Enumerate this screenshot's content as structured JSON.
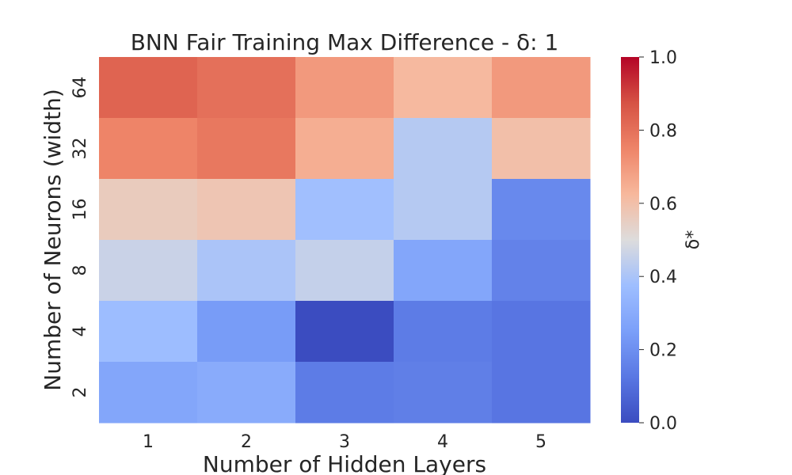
{
  "chart_data": {
    "type": "heatmap",
    "title": "BNN Fair Training Max Difference - δ: 1",
    "xlabel": "Number of Hidden Layers",
    "ylabel": "Number of Neurons (width)",
    "x_categories": [
      "1",
      "2",
      "3",
      "4",
      "5"
    ],
    "y_categories": [
      "64",
      "32",
      "16",
      "8",
      "4",
      "2"
    ],
    "values": [
      [
        0.83,
        0.8,
        0.7,
        0.62,
        0.7
      ],
      [
        0.75,
        0.78,
        0.65,
        0.42,
        0.6
      ],
      [
        0.56,
        0.58,
        0.38,
        0.42,
        0.18
      ],
      [
        0.46,
        0.4,
        0.45,
        0.28,
        0.16
      ],
      [
        0.37,
        0.24,
        0.0,
        0.14,
        0.12
      ],
      [
        0.28,
        0.3,
        0.14,
        0.15,
        0.12
      ]
    ],
    "colorbar": {
      "label": "δ*",
      "min": 0.0,
      "max": 1.0,
      "ticks": [
        "0.0",
        "0.2",
        "0.4",
        "0.6",
        "0.8",
        "1.0"
      ],
      "colormap": "coolwarm"
    },
    "grid": false
  }
}
